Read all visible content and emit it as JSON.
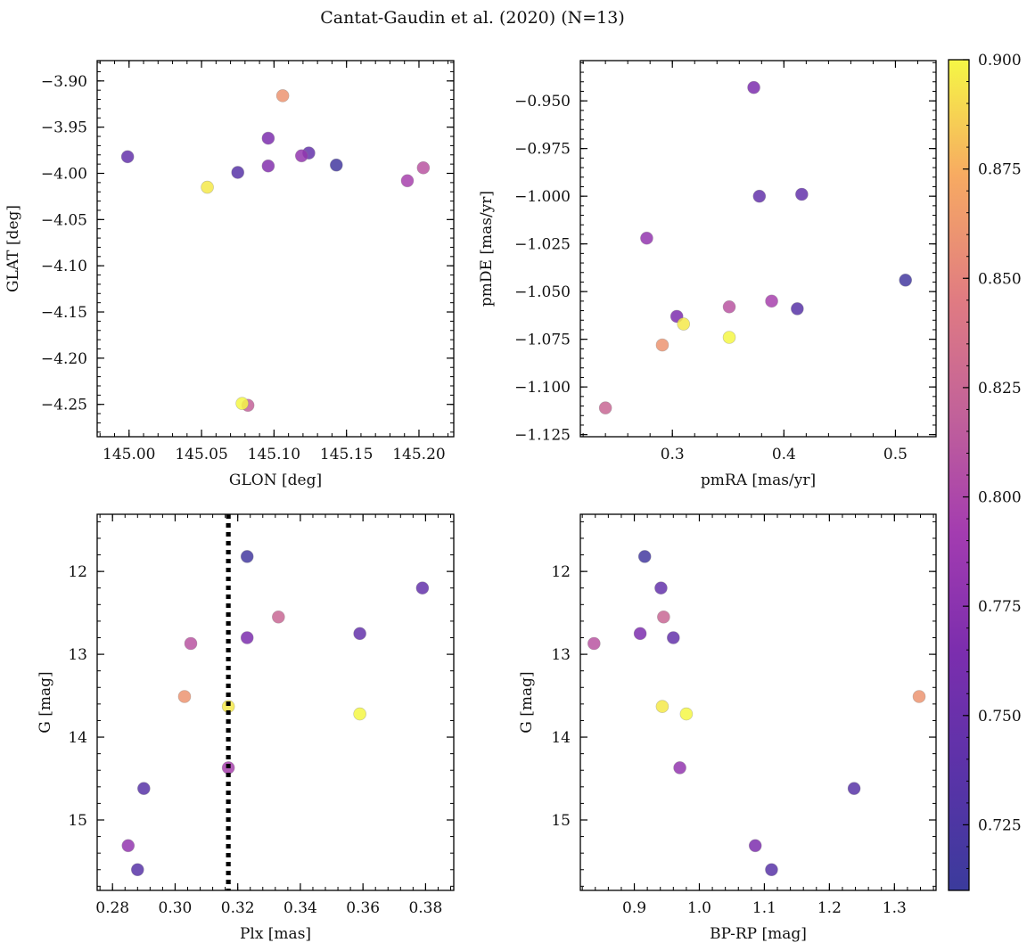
{
  "chart_data": {
    "title": "Cantat-Gaudin et al. (2020) (N=13)",
    "colorbar": {
      "range": [
        0.71,
        0.9
      ],
      "colormap": "plasma",
      "ticks": [
        "0.725",
        "0.750",
        "0.775",
        "0.800",
        "0.825",
        "0.850",
        "0.875",
        "0.900"
      ],
      "tick_values": [
        0.725,
        0.75,
        0.775,
        0.8,
        0.825,
        0.85,
        0.875,
        0.9
      ]
    },
    "panels": [
      {
        "name": "glon-glat",
        "type": "scatter",
        "xlabel": "GLON [deg]",
        "ylabel": "GLAT [deg]",
        "xlim": [
          144.978,
          145.224
        ],
        "ylim": [
          -4.285,
          -3.878
        ],
        "y_inverted": false,
        "xticks": [
          145.0,
          145.05,
          145.1,
          145.15,
          145.2
        ],
        "xtick_labels": [
          "145.00",
          "145.05",
          "145.10",
          "145.15",
          "145.20"
        ],
        "yticks": [
          -3.9,
          -3.95,
          -4.0,
          -4.05,
          -4.1,
          -4.15,
          -4.2,
          -4.25
        ],
        "ytick_labels": [
          "−3.90",
          "−3.95",
          "−4.00",
          "−4.05",
          "−4.10",
          "−4.15",
          "−4.20",
          "−4.25"
        ],
        "points": [
          {
            "x": 145.106,
            "y": -3.916,
            "c": 0.86
          },
          {
            "x": 144.999,
            "y": -3.982,
            "c": 0.745
          },
          {
            "x": 145.096,
            "y": -3.962,
            "c": 0.765
          },
          {
            "x": 145.124,
            "y": -3.978,
            "c": 0.745
          },
          {
            "x": 145.119,
            "y": -3.981,
            "c": 0.78
          },
          {
            "x": 145.143,
            "y": -3.991,
            "c": 0.718
          },
          {
            "x": 145.096,
            "y": -3.992,
            "c": 0.77
          },
          {
            "x": 145.075,
            "y": -3.999,
            "c": 0.735
          },
          {
            "x": 145.203,
            "y": -3.994,
            "c": 0.81
          },
          {
            "x": 145.192,
            "y": -4.008,
            "c": 0.795
          },
          {
            "x": 145.054,
            "y": -4.015,
            "c": 0.895
          },
          {
            "x": 145.082,
            "y": -4.251,
            "c": 0.82
          },
          {
            "x": 145.078,
            "y": -4.249,
            "c": 0.9
          }
        ]
      },
      {
        "name": "pmra-pmde",
        "type": "scatter",
        "xlabel": "pmRA [mas/yr]",
        "ylabel": "pmDE [mas/yr]",
        "xlim": [
          0.2175,
          0.5364
        ],
        "ylim": [
          -1.1261,
          -0.9289
        ],
        "y_inverted": false,
        "xticks": [
          0.3,
          0.4,
          0.5
        ],
        "xtick_labels": [
          "0.3",
          "0.4",
          "0.5"
        ],
        "yticks": [
          -0.95,
          -0.975,
          -1.0,
          -1.025,
          -1.05,
          -1.075,
          -1.1,
          -1.125
        ],
        "ytick_labels": [
          "−0.950",
          "−0.975",
          "−1.000",
          "−1.025",
          "−1.050",
          "−1.075",
          "−1.100",
          "−1.125"
        ],
        "points": [
          {
            "x": 0.373,
            "y": -0.943,
            "c": 0.765
          },
          {
            "x": 0.378,
            "y": -1.0,
            "c": 0.745
          },
          {
            "x": 0.416,
            "y": -0.999,
            "c": 0.745
          },
          {
            "x": 0.277,
            "y": -1.022,
            "c": 0.78
          },
          {
            "x": 0.509,
            "y": -1.044,
            "c": 0.718
          },
          {
            "x": 0.389,
            "y": -1.055,
            "c": 0.795
          },
          {
            "x": 0.351,
            "y": -1.058,
            "c": 0.81
          },
          {
            "x": 0.412,
            "y": -1.059,
            "c": 0.735
          },
          {
            "x": 0.304,
            "y": -1.063,
            "c": 0.765
          },
          {
            "x": 0.31,
            "y": -1.067,
            "c": 0.895
          },
          {
            "x": 0.351,
            "y": -1.074,
            "c": 0.9
          },
          {
            "x": 0.291,
            "y": -1.078,
            "c": 0.86
          },
          {
            "x": 0.24,
            "y": -1.111,
            "c": 0.825
          }
        ]
      },
      {
        "name": "plx-g",
        "type": "scatter",
        "xlabel": "Plx [mas]",
        "ylabel": "G [mag]",
        "xlim": [
          0.2751,
          0.389
        ],
        "ylim": [
          11.31,
          15.85
        ],
        "y_inverted": true,
        "vline": 0.317,
        "xticks": [
          0.28,
          0.3,
          0.32,
          0.34,
          0.36,
          0.38
        ],
        "xtick_labels": [
          "0.28",
          "0.30",
          "0.32",
          "0.34",
          "0.36",
          "0.38"
        ],
        "yticks": [
          12,
          13,
          14,
          15
        ],
        "ytick_labels": [
          "12",
          "13",
          "14",
          "15"
        ],
        "points": [
          {
            "x": 0.323,
            "y": 11.82,
            "c": 0.718
          },
          {
            "x": 0.379,
            "y": 12.2,
            "c": 0.745
          },
          {
            "x": 0.333,
            "y": 12.55,
            "c": 0.825
          },
          {
            "x": 0.359,
            "y": 12.75,
            "c": 0.745
          },
          {
            "x": 0.323,
            "y": 12.8,
            "c": 0.765
          },
          {
            "x": 0.305,
            "y": 12.87,
            "c": 0.81
          },
          {
            "x": 0.303,
            "y": 13.51,
            "c": 0.86
          },
          {
            "x": 0.317,
            "y": 13.63,
            "c": 0.895
          },
          {
            "x": 0.359,
            "y": 13.72,
            "c": 0.9
          },
          {
            "x": 0.317,
            "y": 14.37,
            "c": 0.795
          },
          {
            "x": 0.29,
            "y": 14.62,
            "c": 0.735
          },
          {
            "x": 0.285,
            "y": 15.31,
            "c": 0.78
          },
          {
            "x": 0.288,
            "y": 15.6,
            "c": 0.735
          }
        ]
      },
      {
        "name": "color-magnitude",
        "type": "scatter",
        "xlabel": "BP-RP [mag]",
        "ylabel": "G [mag]",
        "xlim": [
          0.817,
          1.364
        ],
        "ylim": [
          11.31,
          15.85
        ],
        "y_inverted": true,
        "xticks": [
          0.9,
          1.0,
          1.1,
          1.2,
          1.3
        ],
        "xtick_labels": [
          "0.9",
          "1.0",
          "1.1",
          "1.2",
          "1.3"
        ],
        "yticks": [
          12,
          13,
          14,
          15
        ],
        "ytick_labels": [
          "12",
          "13",
          "14",
          "15"
        ],
        "points": [
          {
            "x": 0.916,
            "y": 11.82,
            "c": 0.718
          },
          {
            "x": 0.941,
            "y": 12.2,
            "c": 0.745
          },
          {
            "x": 0.945,
            "y": 12.55,
            "c": 0.825
          },
          {
            "x": 0.909,
            "y": 12.75,
            "c": 0.765
          },
          {
            "x": 0.96,
            "y": 12.8,
            "c": 0.745
          },
          {
            "x": 0.838,
            "y": 12.87,
            "c": 0.81
          },
          {
            "x": 1.338,
            "y": 13.51,
            "c": 0.86
          },
          {
            "x": 0.943,
            "y": 13.63,
            "c": 0.895
          },
          {
            "x": 0.98,
            "y": 13.72,
            "c": 0.9
          },
          {
            "x": 0.97,
            "y": 14.37,
            "c": 0.78
          },
          {
            "x": 1.238,
            "y": 14.62,
            "c": 0.735
          },
          {
            "x": 1.086,
            "y": 15.31,
            "c": 0.765
          },
          {
            "x": 1.111,
            "y": 15.6,
            "c": 0.735
          }
        ]
      }
    ]
  }
}
